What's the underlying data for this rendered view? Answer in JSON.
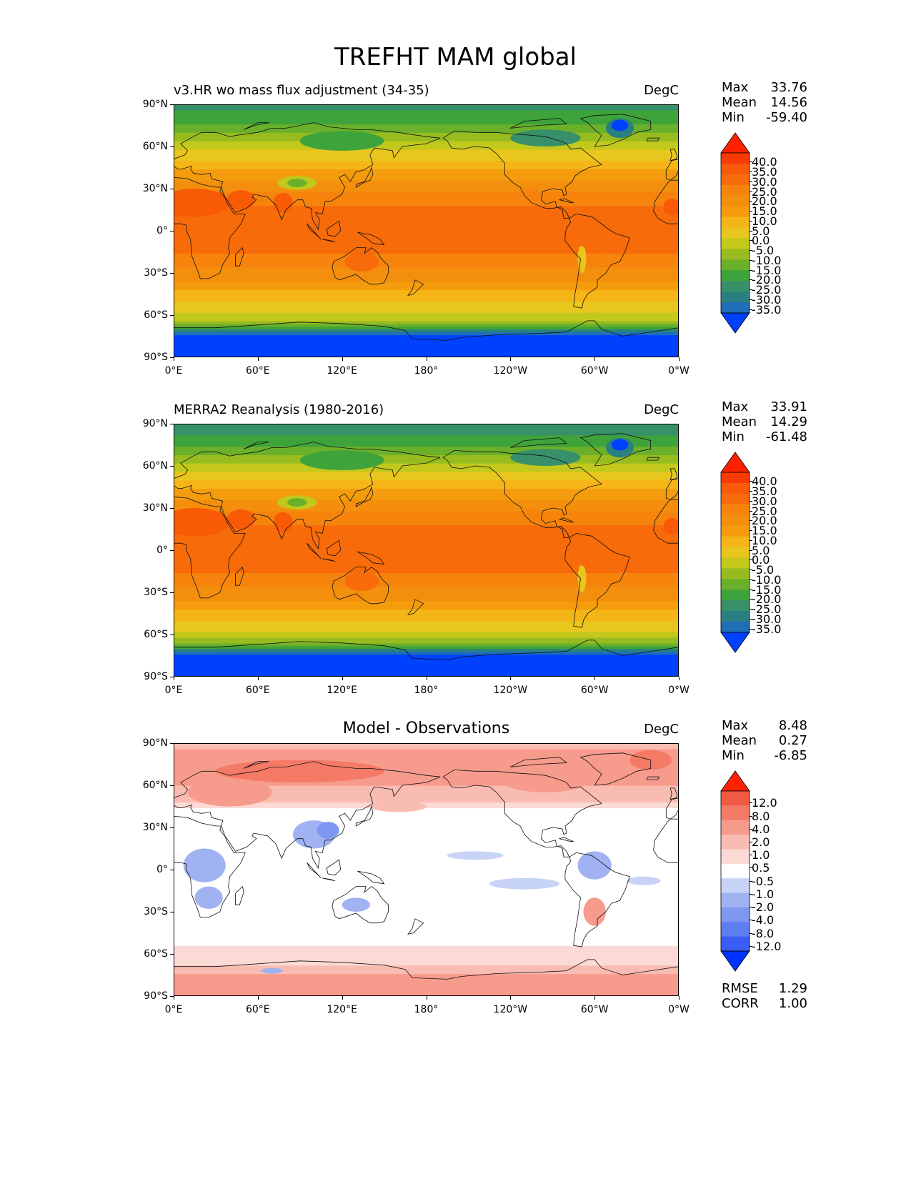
{
  "figure_title": "TREFHT MAM global",
  "lat_ticks": [
    "90°N",
    "60°N",
    "30°N",
    "0°",
    "30°S",
    "60°S",
    "90°S"
  ],
  "lon_ticks": [
    "0°E",
    "60°E",
    "120°E",
    "180°",
    "120°W",
    "60°W",
    "0°W"
  ],
  "panels": [
    {
      "title": "v3.HR wo mass flux adjustment (34-35)",
      "units": "DegC",
      "stats": [
        {
          "label": "Max",
          "value": "33.76"
        },
        {
          "label": "Mean",
          "value": "14.56"
        },
        {
          "label": "Min",
          "value": "-59.40"
        }
      ],
      "colorbar_labels": [
        "40.0",
        "35.0",
        "30.0",
        "25.0",
        "20.0",
        "15.0",
        "10.0",
        "5.0",
        "0.0",
        "-5.0",
        "-10.0",
        "-15.0",
        "-20.0",
        "-25.0",
        "-30.0",
        "-35.0"
      ]
    },
    {
      "title": "MERRA2 Reanalysis (1980-2016)",
      "units": "DegC",
      "stats": [
        {
          "label": "Max",
          "value": "33.91"
        },
        {
          "label": "Mean",
          "value": "14.29"
        },
        {
          "label": "Min",
          "value": "-61.48"
        }
      ],
      "colorbar_labels": [
        "40.0",
        "35.0",
        "30.0",
        "25.0",
        "20.0",
        "15.0",
        "10.0",
        "5.0",
        "0.0",
        "-5.0",
        "-10.0",
        "-15.0",
        "-20.0",
        "-25.0",
        "-30.0",
        "-35.0"
      ]
    },
    {
      "title": "Model - Observations",
      "units": "DegC",
      "stats": [
        {
          "label": "Max",
          "value": "8.48"
        },
        {
          "label": "Mean",
          "value": "0.27"
        },
        {
          "label": "Min",
          "value": "-6.85"
        }
      ],
      "colorbar_labels": [
        "12.0",
        "8.0",
        "4.0",
        "2.0",
        "1.0",
        "0.5",
        "-0.5",
        "-1.0",
        "-2.0",
        "-4.0",
        "-8.0",
        "-12.0"
      ],
      "extra_stats": [
        {
          "label": "RMSE",
          "value": "1.29"
        },
        {
          "label": "CORR",
          "value": "1.00"
        }
      ]
    }
  ],
  "chart_data": [
    {
      "type": "heatmap",
      "title": "v3.HR wo mass flux adjustment (34-35)",
      "units": "DegC",
      "xlim": [
        0,
        360
      ],
      "ylim": [
        -90,
        90
      ],
      "levels": [
        -35,
        -30,
        -25,
        -20,
        -15,
        -10,
        -5,
        0,
        5,
        10,
        15,
        20,
        25,
        30,
        35,
        40
      ],
      "colors": [
        "#0040ff",
        "#1e6fb8",
        "#2a8080",
        "#37906a",
        "#3ea33a",
        "#6bb02a",
        "#98bc20",
        "#c3c81c",
        "#e8c61e",
        "#f5b516",
        "#f49c0e",
        "#f48f0e",
        "#f6840c",
        "#f76b0a",
        "#f85a06",
        "#fa3a04",
        "#ff2000"
      ],
      "zonal_profile": [
        {
          "lat": -90,
          "value": -45
        },
        {
          "lat": -75,
          "value": -38
        },
        {
          "lat": -65,
          "value": -6
        },
        {
          "lat": -55,
          "value": 2
        },
        {
          "lat": -45,
          "value": 8
        },
        {
          "lat": -35,
          "value": 15
        },
        {
          "lat": -25,
          "value": 21
        },
        {
          "lat": -15,
          "value": 25
        },
        {
          "lat": 0,
          "value": 27
        },
        {
          "lat": 15,
          "value": 26
        },
        {
          "lat": 25,
          "value": 22
        },
        {
          "lat": 35,
          "value": 16
        },
        {
          "lat": 45,
          "value": 9
        },
        {
          "lat": 55,
          "value": 2
        },
        {
          "lat": 65,
          "value": -6
        },
        {
          "lat": 75,
          "value": -14
        },
        {
          "lat": 90,
          "value": -22
        }
      ],
      "stats": {
        "max": 33.76,
        "mean": 14.56,
        "min": -59.4
      }
    },
    {
      "type": "heatmap",
      "title": "MERRA2 Reanalysis (1980-2016)",
      "units": "DegC",
      "xlim": [
        0,
        360
      ],
      "ylim": [
        -90,
        90
      ],
      "levels": [
        -35,
        -30,
        -25,
        -20,
        -15,
        -10,
        -5,
        0,
        5,
        10,
        15,
        20,
        25,
        30,
        35,
        40
      ],
      "colors": [
        "#0040ff",
        "#1e6fb8",
        "#2a8080",
        "#37906a",
        "#3ea33a",
        "#6bb02a",
        "#98bc20",
        "#c3c81c",
        "#e8c61e",
        "#f5b516",
        "#f49c0e",
        "#f48f0e",
        "#f6840c",
        "#f76b0a",
        "#f85a06",
        "#fa3a04",
        "#ff2000"
      ],
      "zonal_profile": [
        {
          "lat": -90,
          "value": -46
        },
        {
          "lat": -75,
          "value": -38
        },
        {
          "lat": -65,
          "value": -7
        },
        {
          "lat": -55,
          "value": 2
        },
        {
          "lat": -45,
          "value": 8
        },
        {
          "lat": -35,
          "value": 15
        },
        {
          "lat": -25,
          "value": 21
        },
        {
          "lat": -15,
          "value": 25
        },
        {
          "lat": 0,
          "value": 27
        },
        {
          "lat": 15,
          "value": 26
        },
        {
          "lat": 25,
          "value": 22
        },
        {
          "lat": 35,
          "value": 16
        },
        {
          "lat": 45,
          "value": 9
        },
        {
          "lat": 55,
          "value": 1
        },
        {
          "lat": 65,
          "value": -7
        },
        {
          "lat": 75,
          "value": -16
        },
        {
          "lat": 90,
          "value": -24
        }
      ],
      "stats": {
        "max": 33.91,
        "mean": 14.29,
        "min": -61.48
      }
    },
    {
      "type": "heatmap",
      "title": "Model - Observations",
      "units": "DegC",
      "xlim": [
        0,
        360
      ],
      "ylim": [
        -90,
        90
      ],
      "levels": [
        -12,
        -8,
        -4,
        -2,
        -1,
        -0.5,
        0.5,
        1,
        2,
        4,
        8,
        12
      ],
      "colors": [
        "#0033ff",
        "#3a5ef5",
        "#5f7ef3",
        "#7e97f2",
        "#a0b2f2",
        "#c8d3f8",
        "#ffffff",
        "#fbd9d5",
        "#f9bcb2",
        "#f79b8c",
        "#f47a66",
        "#f05a44",
        "#ff2000"
      ],
      "zonal_profile": [
        {
          "lat": -90,
          "value": 2
        },
        {
          "lat": -75,
          "value": 2
        },
        {
          "lat": -65,
          "value": 0.7
        },
        {
          "lat": -55,
          "value": 0.6
        },
        {
          "lat": -45,
          "value": 0
        },
        {
          "lat": -25,
          "value": 0
        },
        {
          "lat": 0,
          "value": 0
        },
        {
          "lat": 25,
          "value": 0
        },
        {
          "lat": 40,
          "value": 0
        },
        {
          "lat": 50,
          "value": 1.2
        },
        {
          "lat": 60,
          "value": 2
        },
        {
          "lat": 75,
          "value": 3
        },
        {
          "lat": 90,
          "value": 1.5
        }
      ],
      "stats": {
        "max": 8.48,
        "mean": 0.27,
        "min": -6.85,
        "rmse": 1.29,
        "corr": 1.0
      }
    }
  ]
}
